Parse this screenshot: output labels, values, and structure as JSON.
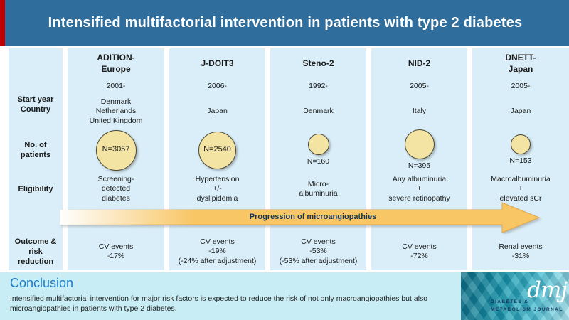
{
  "header": {
    "title": "Intensified multifactorial intervention in patients with type 2 diabetes"
  },
  "row_labels": {
    "start_year_country": "Start year\nCountry",
    "no_of_patients": "No. of\npatients",
    "eligibility": "Eligibility",
    "outcome": "Outcome &\nrisk reduction"
  },
  "studies": [
    {
      "name": "ADITION-\nEurope",
      "start_year": "2001-",
      "country": "Denmark\nNetherlands\nUnited Kingdom",
      "n_label": "N=3057",
      "circle_diameter": 55,
      "eligibility": "Screening-\ndetected\ndiabetes",
      "outcome": "CV events\n-17%"
    },
    {
      "name": "J-DOIT3",
      "start_year": "2006-",
      "country": "Japan",
      "n_label": "N=2540",
      "circle_diameter": 51,
      "eligibility": "Hypertension\n+/-\ndyslipidemia",
      "outcome": "CV events\n-19%\n(-24% after adjustment)"
    },
    {
      "name": "Steno-2",
      "start_year": "1992-",
      "country": "Denmark",
      "n_label": "N=160",
      "circle_diameter": 28,
      "eligibility": "Micro-\nalbuminuria",
      "outcome": "CV events\n-53%\n(-53% after adjustment)"
    },
    {
      "name": "NID-2",
      "start_year": "2005-",
      "country": "Italy",
      "n_label": "N=395",
      "circle_diameter": 40,
      "eligibility": "Any albuminuria\n+\nsevere retinopathy",
      "outcome": "CV events\n-72%"
    },
    {
      "name": "DNETT-\nJapan",
      "start_year": "2005-",
      "country": "Japan",
      "n_label": "N=153",
      "circle_diameter": 26,
      "eligibility": "Macroalbuminuria\n+\nelevated sCr",
      "outcome": "Renal events\n-31%"
    }
  ],
  "arrow": {
    "label": "Progression of microangiopathies"
  },
  "conclusion": {
    "heading": "Conclusion",
    "text": "Intensified multifactorial intervention for major risk factors is expected to reduce the risk of not only macroangiopathies but also microangiopathies in patients with type 2 diabetes."
  },
  "logo": {
    "abbr": "dmj",
    "line1": "DIABETES &",
    "line2": "METABOLISM JOURNAL"
  },
  "colors": {
    "header_bg": "#2e6d9c",
    "accent_red": "#c00000",
    "column_bg": "#d9eef8",
    "circle_fill": "#f3e4a3",
    "arrow_fill": "#f8c665",
    "arrow_text": "#17365d",
    "conclusion_bg": "#c9edf4",
    "conclusion_heading": "#1e7ec8",
    "logo_navy": "#17365d"
  }
}
